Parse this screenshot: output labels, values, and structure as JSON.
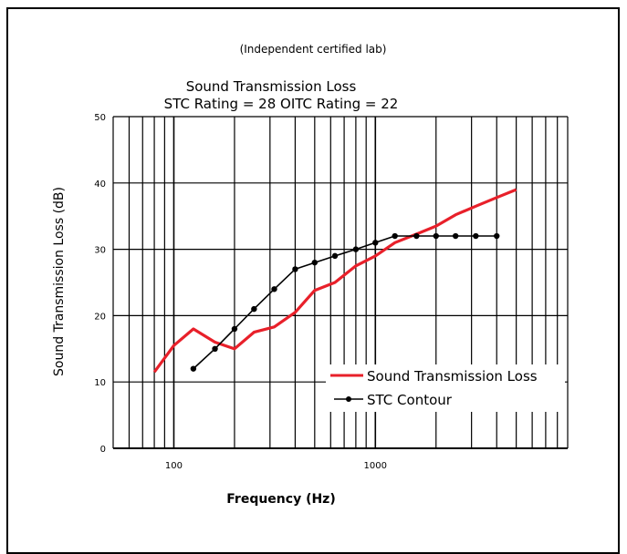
{
  "header_note": "(Independent certified lab)",
  "chart_data": {
    "type": "line",
    "title": "Sound Transmission Loss",
    "subtitle": "STC Rating = 28  OITC Rating = 22",
    "xlabel": "Frequency (Hz)",
    "ylabel": "Sound Transmission Loss (dB)",
    "x_scale": "log",
    "xlim": [
      50,
      9000
    ],
    "ylim": [
      0,
      50
    ],
    "x_ticks": [
      100,
      1000
    ],
    "x_tick_labels": [
      "100",
      "1000"
    ],
    "y_ticks": [
      0,
      10,
      20,
      30,
      40,
      50
    ],
    "y_tick_labels": [
      "0",
      "10",
      "20",
      "30",
      "40",
      "50"
    ],
    "grid": true,
    "legend_position": "lower-right",
    "series": [
      {
        "name": "Sound Transmission Loss",
        "color": "#e8202a",
        "marker": "none",
        "x": [
          80,
          100,
          125,
          160,
          200,
          250,
          315,
          400,
          500,
          630,
          800,
          1000,
          1250,
          1600,
          2000,
          2500,
          3150,
          4000,
          5000
        ],
        "y": [
          11.5,
          15.5,
          18,
          16,
          15,
          17.5,
          18.3,
          20.5,
          23.8,
          25,
          27.5,
          29,
          31,
          32.3,
          33.5,
          35.2,
          36.5,
          37.8,
          39
        ]
      },
      {
        "name": "STC Contour",
        "color": "#000000",
        "marker": "circle",
        "x": [
          125,
          160,
          200,
          250,
          315,
          400,
          500,
          630,
          800,
          1000,
          1250,
          1600,
          2000,
          2500,
          3150,
          4000
        ],
        "y": [
          12,
          15,
          18,
          21,
          24,
          27,
          28,
          29,
          30,
          31,
          32,
          32,
          32,
          32,
          32,
          32
        ]
      }
    ]
  }
}
